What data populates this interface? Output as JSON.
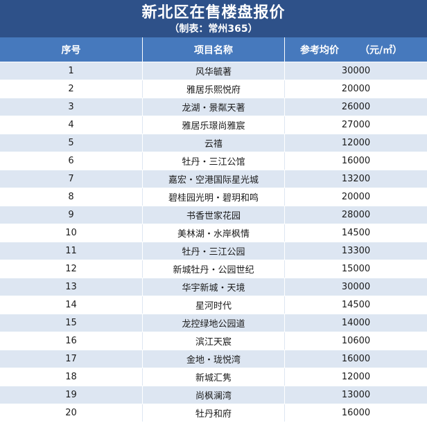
{
  "header": {
    "title": "新北区在售楼盘报价",
    "subtitle": "（制表：常州365）"
  },
  "columns": {
    "index": "序号",
    "name": "项目名称",
    "price": "参考均价",
    "unit": "（元/㎡）"
  },
  "rows": [
    {
      "no": "1",
      "name": "风华毓著",
      "price": "30000"
    },
    {
      "no": "2",
      "name": "雅居乐熙悦府",
      "price": "20000"
    },
    {
      "no": "3",
      "name": "龙湖・景粼天著",
      "price": "26000"
    },
    {
      "no": "4",
      "name": "雅居乐璟尚雅宸",
      "price": "27000"
    },
    {
      "no": "5",
      "name": "云禧",
      "price": "12000"
    },
    {
      "no": "6",
      "name": "牡丹・三江公馆",
      "price": "16000"
    },
    {
      "no": "7",
      "name": "嘉宏・空港国际星光城",
      "price": "13200"
    },
    {
      "no": "8",
      "name": "碧桂园光明・碧玥和鸣",
      "price": "20000"
    },
    {
      "no": "9",
      "name": "书香世家花园",
      "price": "28000"
    },
    {
      "no": "10",
      "name": "美林湖・水岸枫情",
      "price": "14500"
    },
    {
      "no": "11",
      "name": "牡丹・三江公园",
      "price": "13300"
    },
    {
      "no": "12",
      "name": "新城牡丹・公园世纪",
      "price": "15000"
    },
    {
      "no": "13",
      "name": "华宇新城・天境",
      "price": "30000"
    },
    {
      "no": "14",
      "name": "星河时代",
      "price": "14500"
    },
    {
      "no": "15",
      "name": "龙控绿地公园道",
      "price": "14000"
    },
    {
      "no": "16",
      "name": "滨江天宸",
      "price": "10600"
    },
    {
      "no": "17",
      "name": "金地・珑悦湾",
      "price": "16000"
    },
    {
      "no": "18",
      "name": "新城汇隽",
      "price": "12000"
    },
    {
      "no": "19",
      "name": "尚枫澜湾",
      "price": "13000"
    },
    {
      "no": "20",
      "name": "牡丹和府",
      "price": "16000"
    }
  ],
  "colors": {
    "header_bg": "#2e5189",
    "column_header_bg": "#4679bd",
    "row_stripe": "#dde6f2"
  }
}
